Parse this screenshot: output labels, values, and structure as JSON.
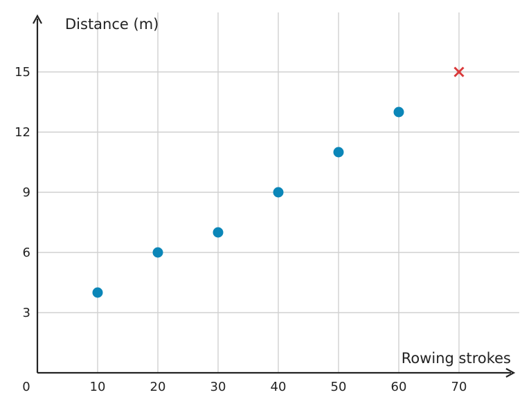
{
  "chart_data": {
    "type": "scatter",
    "xlabel": "Rowing strokes",
    "ylabel": "Distance (m)",
    "xlim": [
      0,
      80
    ],
    "ylim": [
      0,
      18
    ],
    "x_ticks": [
      10,
      20,
      30,
      40,
      50,
      60,
      70
    ],
    "y_ticks": [
      3,
      6,
      9,
      12,
      15
    ],
    "origin_label": "0",
    "grid": true,
    "series": [
      {
        "marker": "circle",
        "color": "#0b86b8",
        "points": [
          {
            "x": 10,
            "y": 4
          },
          {
            "x": 20,
            "y": 6
          },
          {
            "x": 30,
            "y": 7
          },
          {
            "x": 40,
            "y": 9
          },
          {
            "x": 50,
            "y": 11
          },
          {
            "x": 60,
            "y": 13
          }
        ]
      },
      {
        "marker": "cross",
        "color": "#d9393a",
        "points": [
          {
            "x": 70,
            "y": 15
          }
        ]
      }
    ]
  }
}
